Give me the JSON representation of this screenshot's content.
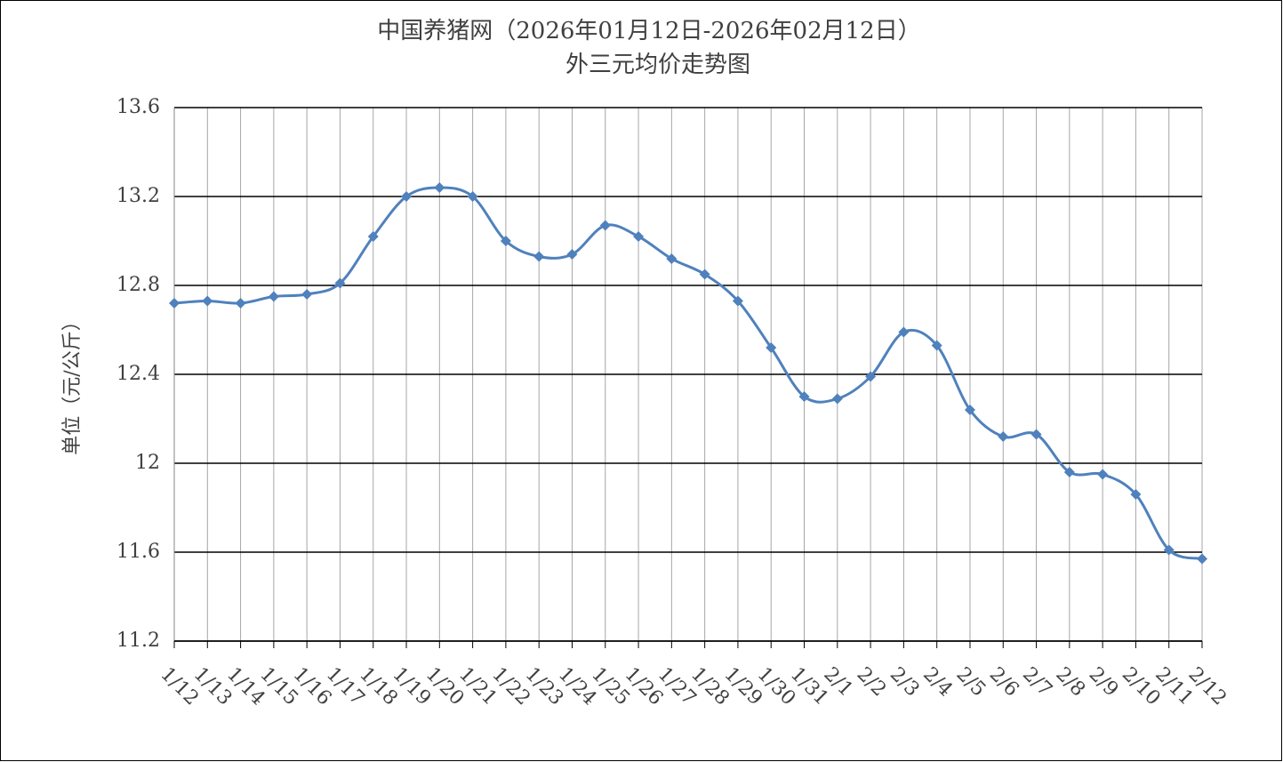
{
  "chart_data": {
    "type": "line",
    "title": "中国养猪网（2026年01月12日-2026年02月12日）",
    "subtitle": "外三元均价走势图",
    "y_label": "单位（元/公斤）",
    "categories": [
      "1/12",
      "1/13",
      "1/14",
      "1/15",
      "1/16",
      "1/17",
      "1/18",
      "1/19",
      "1/20",
      "1/21",
      "1/22",
      "1/23",
      "1/24",
      "1/25",
      "1/26",
      "1/27",
      "1/28",
      "1/29",
      "1/30",
      "1/31",
      "2/1",
      "2/2",
      "2/3",
      "2/4",
      "2/5",
      "2/6",
      "2/7",
      "2/8",
      "2/9",
      "2/10",
      "2/11",
      "2/12"
    ],
    "values": [
      12.72,
      12.73,
      12.72,
      12.75,
      12.76,
      12.81,
      13.02,
      13.2,
      13.24,
      13.2,
      13.0,
      12.93,
      12.94,
      13.07,
      13.02,
      12.92,
      12.85,
      12.73,
      12.52,
      12.3,
      12.29,
      12.39,
      12.59,
      12.53,
      12.24,
      12.12,
      12.13,
      11.96,
      11.95,
      11.86,
      11.61,
      11.57
    ],
    "color": "#4f81bd",
    "ylim": [
      11.2,
      13.6
    ],
    "yticks": [
      11.2,
      11.6,
      12,
      12.4,
      12.8,
      13.2,
      13.6
    ],
    "grid": true,
    "smooth": true
  }
}
